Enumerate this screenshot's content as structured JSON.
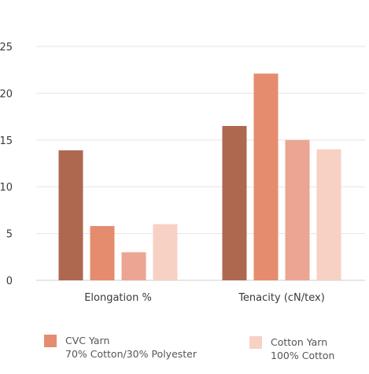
{
  "chart_data": {
    "type": "bar",
    "title": "",
    "xlabel": "",
    "ylabel": "",
    "ylim": [
      0,
      25
    ],
    "yticks": [
      0,
      5,
      10,
      15,
      20,
      25
    ],
    "grid": true,
    "legend_position": "bottom",
    "categories": [
      "Elongation %",
      "Tenacity (cN/tex)"
    ],
    "series": [
      {
        "color": "#ae6850",
        "values": [
          13.9,
          16.5
        ]
      },
      {
        "color": "#e58c6e",
        "values": [
          5.8,
          22.1
        ]
      },
      {
        "color": "#eba592",
        "values": [
          3.0,
          15.0
        ]
      },
      {
        "color": "#f6d1c4",
        "values": [
          6.0,
          14.0
        ]
      }
    ],
    "legend": [
      {
        "line1": "CVC Yarn",
        "line2": "70% Cotton/30% Polyester",
        "color": "#e58c6e"
      },
      {
        "line1": "Cotton Yarn",
        "line2": "100% Cotton",
        "color": "#f6d1c4"
      }
    ]
  }
}
